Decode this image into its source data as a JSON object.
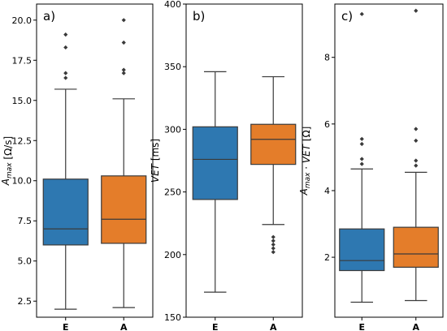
{
  "colors": {
    "E": "#2e78b1",
    "A": "#e47d2a",
    "line": "#3a3a3a",
    "outlier": "#3a3a3a"
  },
  "chart_data": [
    {
      "type": "box",
      "panel_label": "a)",
      "ylabel": "A_max [Ω/s]",
      "ylim": [
        1.5,
        21.0
      ],
      "yticks": [
        "2.5",
        "5.0",
        "7.5",
        "10.0",
        "12.5",
        "15.0",
        "17.5",
        "20.0"
      ],
      "ytick_values": [
        2.5,
        5.0,
        7.5,
        10.0,
        12.5,
        15.0,
        17.5,
        20.0
      ],
      "categories": [
        "E",
        "A"
      ],
      "boxes": [
        {
          "name": "E",
          "whisker_low": 2.0,
          "q1": 6.0,
          "median": 7.0,
          "q3": 10.1,
          "whisker_high": 15.7,
          "outliers": [
            16.4,
            16.7,
            18.3,
            19.1
          ]
        },
        {
          "name": "A",
          "whisker_low": 2.1,
          "q1": 6.1,
          "median": 7.6,
          "q3": 10.3,
          "whisker_high": 15.1,
          "outliers": [
            16.7,
            16.9,
            18.6,
            20.0
          ]
        }
      ]
    },
    {
      "type": "box",
      "panel_label": "b)",
      "ylabel": "VET [ms]",
      "ylim": [
        150,
        400
      ],
      "yticks": [
        "150",
        "200",
        "250",
        "300",
        "350",
        "400"
      ],
      "ytick_values": [
        150,
        200,
        250,
        300,
        350,
        400
      ],
      "categories": [
        "E",
        "A"
      ],
      "boxes": [
        {
          "name": "E",
          "whisker_low": 170,
          "q1": 244,
          "median": 276,
          "q3": 302,
          "whisker_high": 346,
          "outliers": []
        },
        {
          "name": "A",
          "whisker_low": 224,
          "q1": 272,
          "median": 292,
          "q3": 304,
          "whisker_high": 342,
          "outliers": [
            202,
            205,
            208,
            211,
            214
          ]
        }
      ]
    },
    {
      "type": "box",
      "panel_label": "c)",
      "ylabel": "A_max · VET [Ω]",
      "ylim": [
        0.2,
        9.6
      ],
      "yticks": [
        "2",
        "4",
        "6",
        "8"
      ],
      "ytick_values": [
        2,
        4,
        6,
        8
      ],
      "categories": [
        "E",
        "A"
      ],
      "boxes": [
        {
          "name": "E",
          "whisker_low": 0.65,
          "q1": 1.6,
          "median": 1.9,
          "q3": 2.85,
          "whisker_high": 4.65,
          "outliers": [
            4.8,
            4.95,
            5.4,
            5.55,
            9.3
          ]
        },
        {
          "name": "A",
          "whisker_low": 0.7,
          "q1": 1.7,
          "median": 2.1,
          "q3": 2.9,
          "whisker_high": 4.55,
          "outliers": [
            4.75,
            4.9,
            5.5,
            5.85,
            9.4
          ]
        }
      ]
    }
  ]
}
